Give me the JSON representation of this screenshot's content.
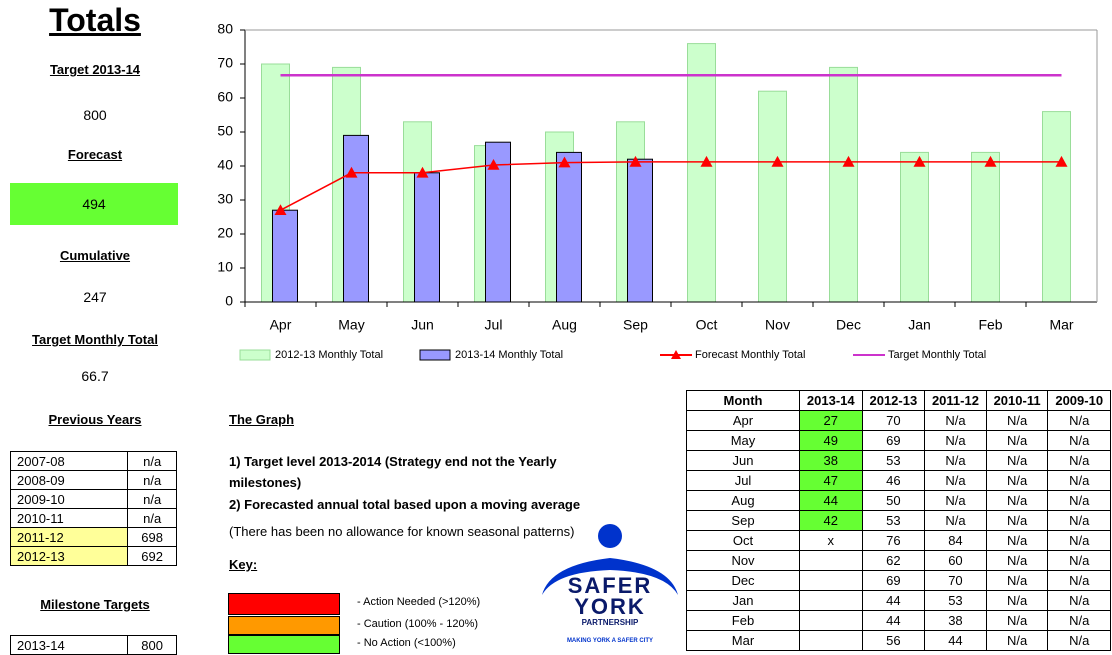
{
  "totals": {
    "title": "Totals",
    "items": [
      {
        "label": "Target 2013-14",
        "value": "800"
      },
      {
        "label": "Forecast",
        "value": "494"
      },
      {
        "label": "Cumulative",
        "value": "247"
      },
      {
        "label": "Target Monthly Total",
        "value": "66.7"
      }
    ]
  },
  "previous_years": {
    "title": "Previous Years",
    "rows": [
      [
        "2007-08",
        "n/a"
      ],
      [
        "2008-09",
        "n/a"
      ],
      [
        "2009-10",
        "n/a"
      ],
      [
        "2010-11",
        "n/a"
      ],
      [
        "2011-12",
        "698"
      ],
      [
        "2012-13",
        "692"
      ]
    ]
  },
  "milestone_targets": {
    "title": "Milestone Targets",
    "rows": [
      [
        "2013-14",
        "800"
      ]
    ]
  },
  "chart_data": {
    "type": "bar",
    "categories": [
      "Apr",
      "May",
      "Jun",
      "Jul",
      "Aug",
      "Sep",
      "Oct",
      "Nov",
      "Dec",
      "Jan",
      "Feb",
      "Mar"
    ],
    "series": [
      {
        "name": "2012-13 Monthly Total",
        "type": "bar",
        "color": "#ccffcc",
        "values": [
          70,
          69,
          53,
          46,
          50,
          53,
          76,
          62,
          69,
          44,
          44,
          56
        ]
      },
      {
        "name": "2013-14 Monthly Total",
        "type": "bar",
        "color": "#9999ff",
        "values": [
          27,
          49,
          38,
          47,
          44,
          42,
          null,
          null,
          null,
          null,
          null,
          null
        ]
      },
      {
        "name": "Forecast Monthly Total",
        "type": "line",
        "color": "#ff0000",
        "marker": "triangle",
        "values": [
          27,
          38,
          38,
          40.3,
          41,
          41.2,
          41.2,
          41.2,
          41.2,
          41.2,
          41.2,
          41.2
        ]
      },
      {
        "name": "Target Monthly Total",
        "type": "line",
        "color": "#cc33cc",
        "values": [
          66.7,
          66.7,
          66.7,
          66.7,
          66.7,
          66.7,
          66.7,
          66.7,
          66.7,
          66.7,
          66.7,
          66.7
        ]
      }
    ],
    "ylim": [
      0,
      80
    ],
    "yticks": [
      0,
      10,
      20,
      30,
      40,
      50,
      60,
      70,
      80
    ],
    "legend": "bottom"
  },
  "notes": {
    "title": "The Graph",
    "lines": [
      "1) Target level 2013-2014 (Strategy end not the Yearly",
      "milestones)",
      "2) Forecasted annual total based upon a moving average"
    ],
    "remark": "(There has been no allowance for known seasonal patterns)"
  },
  "key": {
    "title": "Key:",
    "items": [
      {
        "color": "#ff0000",
        "label": "-   Action Needed (>120%)"
      },
      {
        "color": "#ff9900",
        "label": "-   Caution (100% - 120%)"
      },
      {
        "color": "#66ff33",
        "label": "-   No Action  (<100%)"
      }
    ]
  },
  "logo": {
    "line1": "SAFER",
    "line2": "YORK",
    "line3": "PARTNERSHIP",
    "tagline": "MAKING YORK A SAFER CITY"
  },
  "table": {
    "header": [
      "Month",
      "2013-14",
      "2012-13",
      "2011-12",
      "2010-11",
      "2009-10"
    ],
    "rows": [
      [
        "Apr",
        27,
        70,
        "N/a",
        "N/a",
        "N/a"
      ],
      [
        "May",
        49,
        69,
        "N/a",
        "N/a",
        "N/a"
      ],
      [
        "Jun",
        38,
        53,
        "N/a",
        "N/a",
        "N/a"
      ],
      [
        "Jul",
        47,
        46,
        "N/a",
        "N/a",
        "N/a"
      ],
      [
        "Aug",
        44,
        50,
        "N/a",
        "N/a",
        "N/a"
      ],
      [
        "Sep",
        42,
        53,
        "N/a",
        "N/a",
        "N/a"
      ],
      [
        "Oct",
        "x",
        76,
        84,
        "N/a",
        "N/a"
      ],
      [
        "Nov",
        null,
        62,
        60,
        "N/a",
        "N/a"
      ],
      [
        "Dec",
        null,
        69,
        70,
        "N/a",
        "N/a"
      ],
      [
        "Jan",
        null,
        44,
        53,
        "N/a",
        "N/a"
      ],
      [
        "Feb",
        null,
        44,
        38,
        "N/a",
        "N/a"
      ],
      [
        "Mar",
        null,
        56,
        44,
        "N/a",
        "N/a"
      ]
    ]
  }
}
